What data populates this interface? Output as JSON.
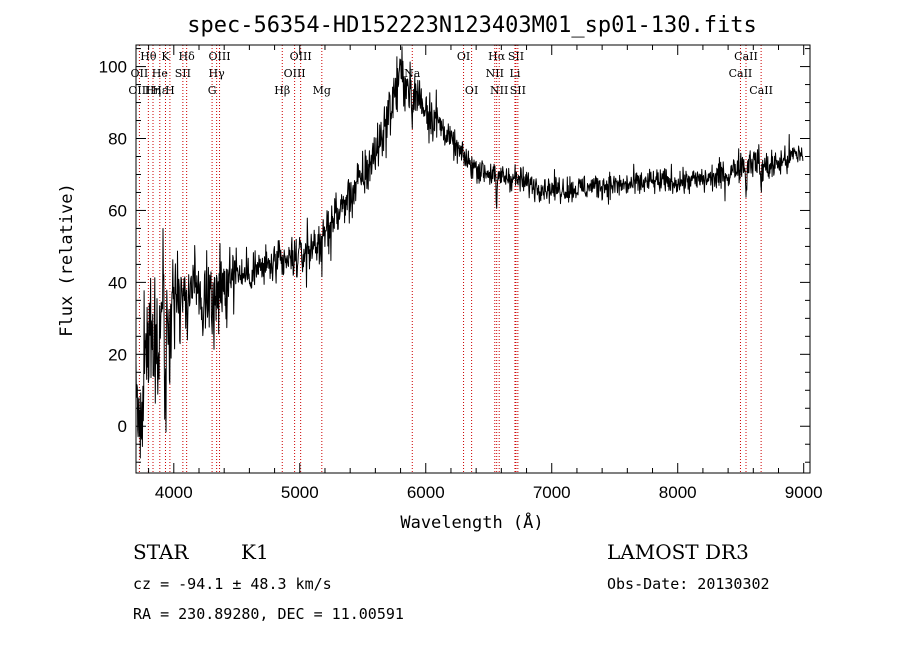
{
  "chart_data": {
    "type": "line",
    "title": "spec-56354-HD152223N123403M01_sp01-130.fits",
    "xlabel": "Wavelength (Å)",
    "ylabel": "Flux (relative)",
    "xlim": [
      3700,
      9050
    ],
    "ylim": [
      -13,
      106
    ],
    "x_ticks": [
      4000,
      5000,
      6000,
      7000,
      8000,
      9000
    ],
    "y_ticks": [
      0,
      20,
      40,
      60,
      80,
      100
    ],
    "line_color": "#000000",
    "marker_color": "#cc0000",
    "spectrum_knots": [
      [
        3700,
        8
      ],
      [
        3720,
        2
      ],
      [
        3760,
        12
      ],
      [
        3800,
        22
      ],
      [
        3850,
        28
      ],
      [
        3900,
        30
      ],
      [
        3950,
        32
      ],
      [
        4000,
        34
      ],
      [
        4050,
        36
      ],
      [
        4100,
        37
      ],
      [
        4200,
        38
      ],
      [
        4300,
        36
      ],
      [
        4400,
        39
      ],
      [
        4500,
        41
      ],
      [
        4600,
        43
      ],
      [
        4700,
        44
      ],
      [
        4800,
        45
      ],
      [
        4900,
        46
      ],
      [
        5000,
        47
      ],
      [
        5100,
        50
      ],
      [
        5200,
        54
      ],
      [
        5300,
        59
      ],
      [
        5400,
        64
      ],
      [
        5500,
        69
      ],
      [
        5600,
        76
      ],
      [
        5700,
        86
      ],
      [
        5800,
        98
      ],
      [
        5850,
        95
      ],
      [
        5950,
        91
      ],
      [
        6050,
        87
      ],
      [
        6150,
        82
      ],
      [
        6250,
        77
      ],
      [
        6350,
        73
      ],
      [
        6450,
        71
      ],
      [
        6550,
        70
      ],
      [
        6700,
        69
      ],
      [
        6850,
        67
      ],
      [
        7000,
        66
      ],
      [
        7200,
        66
      ],
      [
        7400,
        67
      ],
      [
        7600,
        67
      ],
      [
        7800,
        68
      ],
      [
        8000,
        68
      ],
      [
        8200,
        68.5
      ],
      [
        8400,
        70
      ],
      [
        8500,
        73
      ],
      [
        8600,
        74
      ],
      [
        8700,
        72
      ],
      [
        8800,
        73
      ],
      [
        8900,
        75
      ],
      [
        8990,
        76
      ]
    ],
    "absorption_features": [
      {
        "wavelength": 3934,
        "depth": 14
      },
      {
        "wavelength": 3969,
        "depth": 10
      },
      {
        "wavelength": 4102,
        "depth": 6
      },
      {
        "wavelength": 4226,
        "depth": 6
      },
      {
        "wavelength": 4300,
        "depth": 5
      },
      {
        "wavelength": 4861,
        "depth": 4
      },
      {
        "wavelength": 5175,
        "depth": 13
      },
      {
        "wavelength": 5893,
        "depth": 12
      },
      {
        "wavelength": 6563,
        "depth": 11
      },
      {
        "wavelength": 8542,
        "depth": 10
      },
      {
        "wavelength": 8662,
        "depth": 7
      }
    ],
    "line_markers": [
      {
        "label": "Hθ",
        "wavelength": 3798,
        "row": 0
      },
      {
        "label": "OII",
        "wavelength": 3727,
        "row": 1
      },
      {
        "label": "OIII",
        "wavelength": 3727,
        "row": 2
      },
      {
        "label": "Hε",
        "wavelength": 3889,
        "row": 2
      },
      {
        "label": "K",
        "wavelength": 3934,
        "row": 0
      },
      {
        "label": "He",
        "wavelength": 3889,
        "row": 1
      },
      {
        "label": "SII",
        "wavelength": 4072,
        "row": 1
      },
      {
        "label": "Hη",
        "wavelength": 3835,
        "row": 2
      },
      {
        "label": "H",
        "wavelength": 3969,
        "row": 2
      },
      {
        "label": "Hδ",
        "wavelength": 4102,
        "row": 0
      },
      {
        "label": "OIII",
        "wavelength": 4363,
        "row": 0
      },
      {
        "label": "Hγ",
        "wavelength": 4340,
        "row": 1
      },
      {
        "label": "G",
        "wavelength": 4304,
        "row": 2
      },
      {
        "label": "OIII",
        "wavelength": 5007,
        "row": 0
      },
      {
        "label": "OIII",
        "wavelength": 4959,
        "row": 1
      },
      {
        "label": "Hβ",
        "wavelength": 4861,
        "row": 2
      },
      {
        "label": "Mg",
        "wavelength": 5175,
        "row": 2
      },
      {
        "label": "Na",
        "wavelength": 5893,
        "row": 1
      },
      {
        "label": "OI",
        "wavelength": 6300,
        "row": 0
      },
      {
        "label": "OI",
        "wavelength": 6364,
        "row": 2
      },
      {
        "label": "Hα",
        "wavelength": 6563,
        "row": 0
      },
      {
        "label": "SII",
        "wavelength": 6716,
        "row": 0
      },
      {
        "label": "NII",
        "wavelength": 6548,
        "row": 1
      },
      {
        "label": "Li",
        "wavelength": 6708,
        "row": 1
      },
      {
        "label": "NII",
        "wavelength": 6583,
        "row": 2
      },
      {
        "label": "SII",
        "wavelength": 6731,
        "row": 2
      },
      {
        "label": "CaII",
        "wavelength": 8542,
        "row": 0
      },
      {
        "label": "CaII",
        "wavelength": 8498,
        "row": 1
      },
      {
        "label": "CaII",
        "wavelength": 8662,
        "row": 2
      }
    ]
  },
  "info": {
    "object_type": "STAR",
    "subclass": "K1",
    "redshift": "cz = -94.1 ± 48.3 km/s",
    "coordinates": "RA = 230.89280, DEC =  11.00591",
    "survey": "LAMOST DR3",
    "obs_date": "Obs-Date: 20130302"
  }
}
